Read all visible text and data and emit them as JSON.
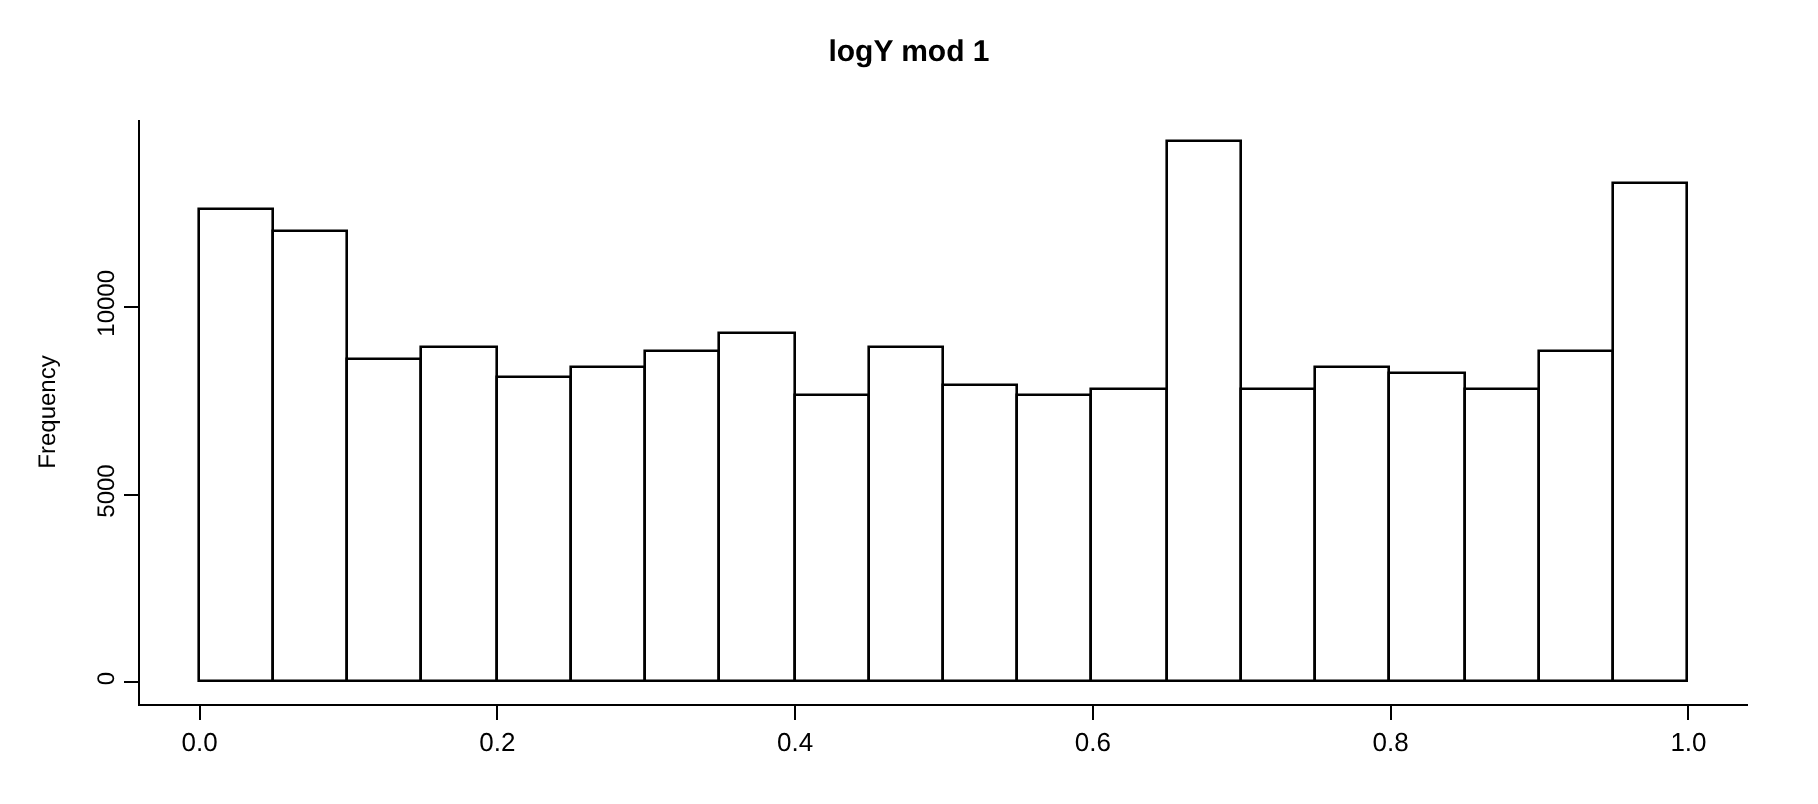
{
  "chart_data": {
    "type": "histogram",
    "title": "logY mod 1",
    "ylabel": "Frequency",
    "bins": [
      0.0,
      0.05,
      0.1,
      0.15,
      0.2,
      0.25,
      0.3,
      0.35,
      0.4,
      0.45,
      0.5,
      0.55,
      0.6,
      0.65,
      0.7,
      0.75,
      0.8,
      0.85,
      0.9,
      0.95,
      1.0
    ],
    "values": [
      12600,
      12000,
      8600,
      8900,
      8100,
      8350,
      8800,
      9300,
      7600,
      8900,
      7900,
      7600,
      7800,
      14400,
      7800,
      8350,
      8200,
      7800,
      8800,
      13250
    ],
    "color": "#ffffff",
    "xlim": [
      -0.04,
      1.04
    ],
    "xticks": [
      {
        "value": 0.0,
        "label": "0.0"
      },
      0.2,
      0.4,
      0.6,
      0.8,
      {
        "value": 1.0,
        "label": "1.0"
      }
    ],
    "ylim": [
      -580,
      14980
    ],
    "yticks": [
      0,
      5000,
      10000
    ]
  }
}
